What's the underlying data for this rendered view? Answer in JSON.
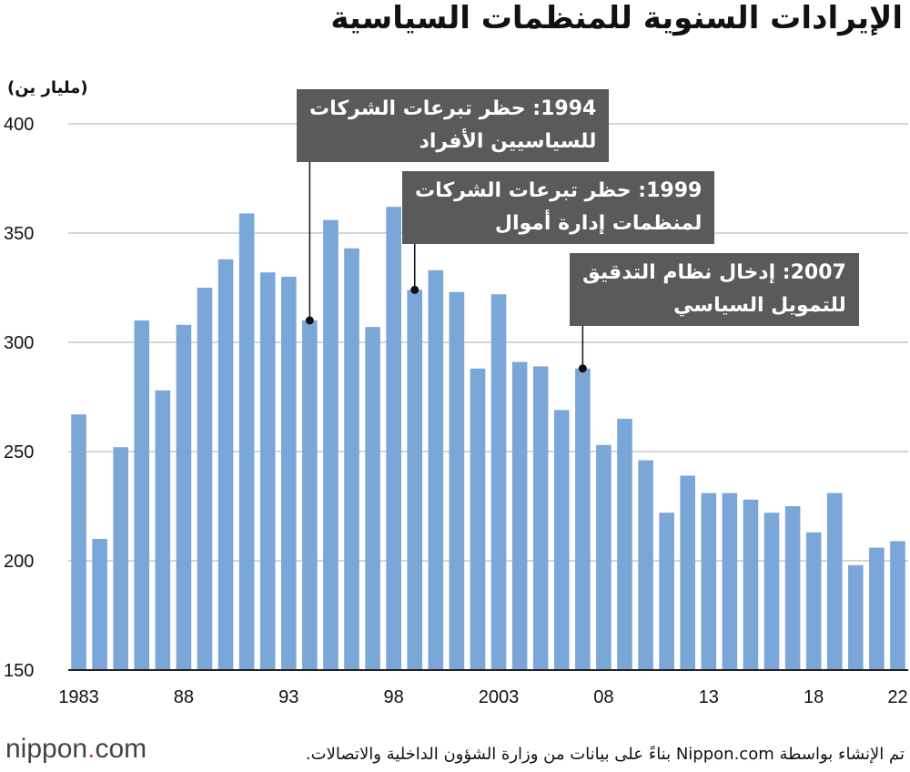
{
  "chart_data": {
    "type": "bar",
    "title": "الإيرادات السنوية للمنظمات السياسية",
    "ylabel": "(مليار ين)",
    "ylim": [
      150,
      400
    ],
    "yticks": [
      "400",
      "350",
      "300",
      "250",
      "200",
      "150"
    ],
    "xtick_labels": [
      "1983",
      "88",
      "93",
      "98",
      "2003",
      "08",
      "13",
      "18",
      "22"
    ],
    "categories": [
      1983,
      1984,
      1985,
      1986,
      1987,
      1988,
      1989,
      1990,
      1991,
      1992,
      1993,
      1994,
      1995,
      1996,
      1997,
      1998,
      1999,
      2000,
      2001,
      2002,
      2003,
      2004,
      2005,
      2006,
      2007,
      2008,
      2009,
      2010,
      2011,
      2012,
      2013,
      2014,
      2015,
      2016,
      2017,
      2018,
      2019,
      2020,
      2021,
      2022
    ],
    "values": [
      267,
      210,
      252,
      310,
      278,
      308,
      325,
      338,
      359,
      332,
      330,
      310,
      356,
      343,
      307,
      362,
      324,
      333,
      323,
      288,
      322,
      291,
      289,
      269,
      288,
      253,
      265,
      246,
      222,
      239,
      231,
      231,
      228,
      222,
      225,
      213,
      231,
      198,
      206,
      209
    ],
    "grid": true,
    "bar_color": "#7aa7d8",
    "annotations": [
      {
        "year": 1994,
        "line1": "1994: حظر تبرعات الشركات",
        "line2": "للسياسيين الأفراد"
      },
      {
        "year": 1999,
        "line1": "1999: حظر تبرعات الشركات",
        "line2": "لمنظمات إدارة أموال"
      },
      {
        "year": 2007,
        "line1": "2007: إدخال نظام التدقيق",
        "line2": "للتمويل السياسي"
      }
    ]
  },
  "footer": {
    "logo_main": "nippon",
    "logo_dot": ".",
    "logo_tail": "com",
    "source": "تم الإنشاء بواسطة Nippon.com بناءً على بيانات من وزارة الشؤون الداخلية والاتصالات."
  }
}
